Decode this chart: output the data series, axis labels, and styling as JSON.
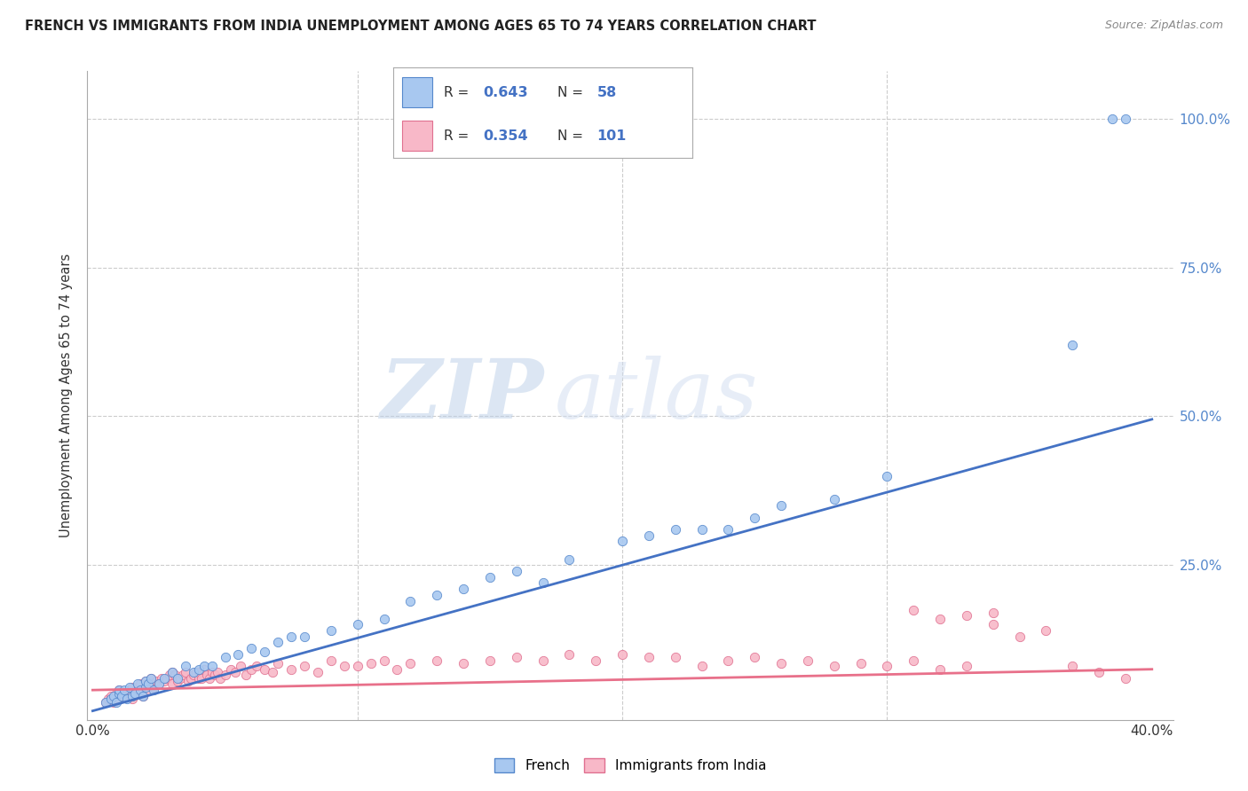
{
  "title": "FRENCH VS IMMIGRANTS FROM INDIA UNEMPLOYMENT AMONG AGES 65 TO 74 YEARS CORRELATION CHART",
  "source": "Source: ZipAtlas.com",
  "ylabel": "Unemployment Among Ages 65 to 74 years",
  "xlim": [
    -0.002,
    0.408
  ],
  "ylim": [
    -0.01,
    1.08
  ],
  "french_fill_color": "#A8C8F0",
  "french_edge_color": "#5588CC",
  "india_fill_color": "#F8B8C8",
  "india_edge_color": "#E07090",
  "french_line_color": "#4472C4",
  "india_line_color": "#E8708A",
  "french_R": "0.643",
  "french_N": "58",
  "india_R": "0.354",
  "india_N": "101",
  "watermark_zip": "ZIP",
  "watermark_atlas": "atlas",
  "background_color": "#FFFFFF",
  "grid_color": "#CCCCCC",
  "french_scatter_x": [
    0.005,
    0.007,
    0.008,
    0.009,
    0.01,
    0.01,
    0.011,
    0.012,
    0.013,
    0.014,
    0.015,
    0.016,
    0.017,
    0.018,
    0.019,
    0.02,
    0.02,
    0.021,
    0.022,
    0.023,
    0.025,
    0.027,
    0.03,
    0.032,
    0.035,
    0.038,
    0.04,
    0.042,
    0.045,
    0.05,
    0.055,
    0.06,
    0.065,
    0.07,
    0.075,
    0.08,
    0.09,
    0.1,
    0.11,
    0.12,
    0.13,
    0.14,
    0.15,
    0.16,
    0.17,
    0.18,
    0.2,
    0.21,
    0.22,
    0.23,
    0.24,
    0.25,
    0.26,
    0.28,
    0.3,
    0.37,
    0.385,
    0.39
  ],
  "french_scatter_y": [
    0.02,
    0.025,
    0.03,
    0.02,
    0.035,
    0.04,
    0.03,
    0.04,
    0.025,
    0.045,
    0.03,
    0.035,
    0.05,
    0.04,
    0.03,
    0.045,
    0.055,
    0.05,
    0.06,
    0.04,
    0.05,
    0.06,
    0.07,
    0.06,
    0.08,
    0.07,
    0.075,
    0.08,
    0.08,
    0.095,
    0.1,
    0.11,
    0.105,
    0.12,
    0.13,
    0.13,
    0.14,
    0.15,
    0.16,
    0.19,
    0.2,
    0.21,
    0.23,
    0.24,
    0.22,
    0.26,
    0.29,
    0.3,
    0.31,
    0.31,
    0.31,
    0.33,
    0.35,
    0.36,
    0.4,
    0.62,
    1.0,
    1.0
  ],
  "india_scatter_x": [
    0.005,
    0.006,
    0.007,
    0.008,
    0.009,
    0.01,
    0.01,
    0.011,
    0.012,
    0.013,
    0.014,
    0.015,
    0.015,
    0.016,
    0.017,
    0.018,
    0.019,
    0.02,
    0.02,
    0.021,
    0.022,
    0.022,
    0.023,
    0.024,
    0.025,
    0.026,
    0.027,
    0.028,
    0.029,
    0.03,
    0.03,
    0.031,
    0.032,
    0.033,
    0.034,
    0.035,
    0.036,
    0.037,
    0.038,
    0.039,
    0.04,
    0.04,
    0.041,
    0.042,
    0.043,
    0.044,
    0.045,
    0.046,
    0.047,
    0.048,
    0.05,
    0.052,
    0.054,
    0.056,
    0.058,
    0.06,
    0.062,
    0.065,
    0.068,
    0.07,
    0.075,
    0.08,
    0.085,
    0.09,
    0.095,
    0.1,
    0.105,
    0.11,
    0.115,
    0.12,
    0.13,
    0.14,
    0.15,
    0.16,
    0.17,
    0.18,
    0.19,
    0.2,
    0.21,
    0.22,
    0.23,
    0.24,
    0.25,
    0.26,
    0.27,
    0.28,
    0.29,
    0.3,
    0.31,
    0.32,
    0.33,
    0.34,
    0.35,
    0.36,
    0.37,
    0.38,
    0.39,
    0.31,
    0.32,
    0.33,
    0.34
  ],
  "india_scatter_y": [
    0.02,
    0.025,
    0.03,
    0.02,
    0.035,
    0.025,
    0.04,
    0.03,
    0.035,
    0.03,
    0.04,
    0.025,
    0.045,
    0.035,
    0.04,
    0.05,
    0.03,
    0.045,
    0.055,
    0.04,
    0.05,
    0.06,
    0.045,
    0.055,
    0.05,
    0.06,
    0.055,
    0.06,
    0.065,
    0.07,
    0.05,
    0.065,
    0.055,
    0.06,
    0.065,
    0.07,
    0.055,
    0.06,
    0.065,
    0.07,
    0.06,
    0.07,
    0.06,
    0.075,
    0.065,
    0.06,
    0.07,
    0.065,
    0.07,
    0.06,
    0.065,
    0.075,
    0.07,
    0.08,
    0.065,
    0.075,
    0.08,
    0.075,
    0.07,
    0.085,
    0.075,
    0.08,
    0.07,
    0.09,
    0.08,
    0.08,
    0.085,
    0.09,
    0.075,
    0.085,
    0.09,
    0.085,
    0.09,
    0.095,
    0.09,
    0.1,
    0.09,
    0.1,
    0.095,
    0.095,
    0.08,
    0.09,
    0.095,
    0.085,
    0.09,
    0.08,
    0.085,
    0.08,
    0.09,
    0.075,
    0.08,
    0.15,
    0.13,
    0.14,
    0.08,
    0.07,
    0.06,
    0.175,
    0.16,
    0.165,
    0.17
  ],
  "french_line_x0": 0.0,
  "french_line_y0": 0.005,
  "french_line_x1": 0.4,
  "french_line_y1": 0.495,
  "india_line_x0": 0.0,
  "india_line_y0": 0.04,
  "india_line_x1": 0.4,
  "india_line_y1": 0.075
}
